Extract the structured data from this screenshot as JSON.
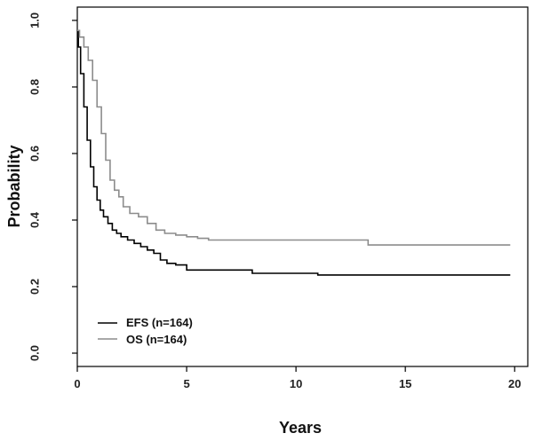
{
  "chart_data": {
    "type": "line",
    "xlabel": "Years",
    "ylabel": "Probability",
    "xlim": [
      0,
      20.6
    ],
    "ylim": [
      -0.04,
      1.04
    ],
    "xticks": [
      0,
      5,
      10,
      15,
      20
    ],
    "yticks": [
      0.0,
      0.2,
      0.4,
      0.6,
      0.8,
      1.0
    ],
    "ytick_labels": [
      "0.0",
      "0.2",
      "0.4",
      "0.6",
      "0.8",
      "1.0"
    ],
    "grid": false,
    "legend_position": "bottom-left",
    "series": [
      {
        "name": "EFS (n=164)",
        "color": "#000000",
        "x": [
          0,
          0.05,
          0.15,
          0.3,
          0.45,
          0.6,
          0.75,
          0.9,
          1.05,
          1.2,
          1.4,
          1.6,
          1.8,
          2.0,
          2.3,
          2.6,
          2.9,
          3.2,
          3.5,
          3.8,
          4.1,
          4.5,
          5.0,
          6.0,
          7.0,
          8.0,
          9.0,
          10.0,
          11.0,
          12.0,
          13.0,
          14.0,
          15.0,
          16.0,
          17.0,
          18.0,
          19.0,
          19.8
        ],
        "y": [
          0.97,
          0.92,
          0.84,
          0.74,
          0.64,
          0.56,
          0.5,
          0.46,
          0.43,
          0.41,
          0.39,
          0.37,
          0.36,
          0.35,
          0.34,
          0.33,
          0.32,
          0.31,
          0.3,
          0.28,
          0.27,
          0.265,
          0.25,
          0.25,
          0.25,
          0.24,
          0.24,
          0.24,
          0.235,
          0.235,
          0.235,
          0.235,
          0.235,
          0.235,
          0.235,
          0.235,
          0.235,
          0.235
        ]
      },
      {
        "name": "OS (n=164)",
        "color": "#8c8c8c",
        "x": [
          0,
          0.1,
          0.3,
          0.5,
          0.7,
          0.9,
          1.1,
          1.3,
          1.5,
          1.7,
          1.9,
          2.1,
          2.4,
          2.8,
          3.2,
          3.6,
          4.0,
          4.5,
          5.0,
          5.5,
          6.0,
          7.0,
          8.0,
          9.0,
          10.0,
          11.0,
          12.0,
          13.0,
          13.3,
          14.0,
          15.0,
          16.0,
          17.0,
          18.0,
          19.0,
          19.8
        ],
        "y": [
          0.97,
          0.95,
          0.92,
          0.88,
          0.82,
          0.74,
          0.66,
          0.58,
          0.52,
          0.49,
          0.47,
          0.44,
          0.42,
          0.41,
          0.39,
          0.37,
          0.36,
          0.355,
          0.35,
          0.345,
          0.34,
          0.34,
          0.34,
          0.34,
          0.34,
          0.34,
          0.34,
          0.34,
          0.325,
          0.325,
          0.325,
          0.325,
          0.325,
          0.325,
          0.325,
          0.325
        ]
      }
    ]
  }
}
